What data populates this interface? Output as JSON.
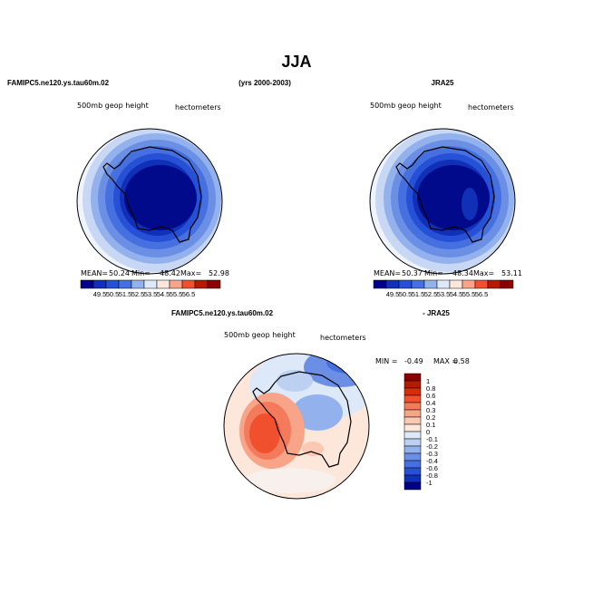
{
  "title": "JJA",
  "header": {
    "left": "FAMIPC5.ne120.ys.tau60m.02",
    "center": "(yrs 2000-2003)",
    "right": "JRA25"
  },
  "panels": [
    {
      "variable": "500mb  geop height",
      "units": "hectometers",
      "stats": [
        {
          "label": "MEAN=",
          "value": 50.24
        },
        {
          "label": "Min=",
          "value": 48.42
        },
        {
          "label": "Max=",
          "value": 52.98
        }
      ]
    },
    {
      "variable": "500mb  geop height",
      "units": "hectometers",
      "stats": [
        {
          "label": "MEAN=",
          "value": 50.37
        },
        {
          "label": "Min=",
          "value": 48.34
        },
        {
          "label": "Max=",
          "value": 53.11
        }
      ]
    }
  ],
  "colorbar": {
    "labels": [
      49.5,
      50.5,
      51.5,
      52.5,
      53.5,
      54.5,
      55.5,
      56.5
    ],
    "colors": [
      "#00008b",
      "#1030b8",
      "#2650d6",
      "#4670e0",
      "#93b1ec",
      "#dde8f8",
      "#fde6da",
      "#f8a488",
      "#f0502d",
      "#b51a00",
      "#8b0000"
    ]
  },
  "difference": {
    "title_left": "FAMIPC5.ne120.ys.tau60m.02",
    "title_right": "- JRA25",
    "variable": "500mb  geop height",
    "units": "hectometers",
    "min_label": "MIN =",
    "min": -0.49,
    "max_label": "MAX =",
    "max": 0.58,
    "colorbar": {
      "labels": [
        1,
        0.8,
        0.6,
        0.4,
        0.3,
        0.2,
        0.1,
        0,
        -0.1,
        -0.2,
        -0.3,
        -0.4,
        -0.6,
        -0.8,
        -1
      ],
      "colors": [
        "#8b0000",
        "#b51a00",
        "#d62d0a",
        "#f0502d",
        "#f47a5c",
        "#f8a488",
        "#fbc8b3",
        "#fde6da",
        "#dde8f8",
        "#bcd0f2",
        "#93b1ec",
        "#6c8fe6",
        "#4670e0",
        "#2650d6",
        "#1030b8",
        "#00008b"
      ]
    }
  }
}
